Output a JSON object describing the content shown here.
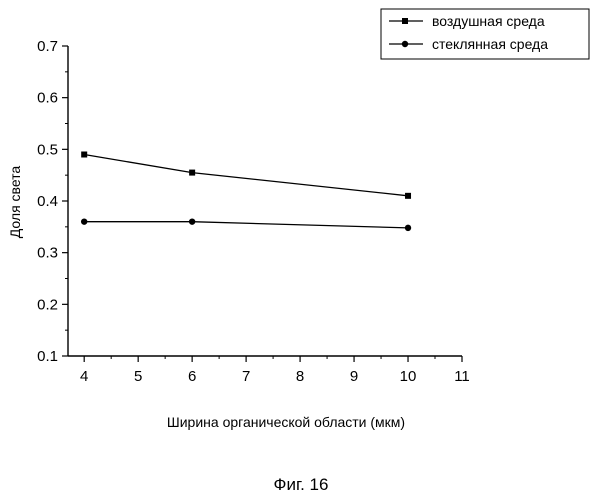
{
  "caption": "Фиг. 16",
  "chart_data": {
    "type": "line",
    "title": "",
    "xlabel": "Ширина органической области (мкм)",
    "ylabel": "Доля света",
    "xlim": [
      3.7,
      11
    ],
    "ylim": [
      0.1,
      0.7
    ],
    "xticks": [
      4,
      5,
      6,
      7,
      8,
      9,
      10,
      11
    ],
    "xtick_labels": [
      "4",
      "5",
      "6",
      "7",
      "8",
      "9",
      "10",
      "11"
    ],
    "yticks": [
      0.1,
      0.2,
      0.3,
      0.4,
      0.5,
      0.6,
      0.7
    ],
    "ytick_labels": [
      "0.1",
      "0.2",
      "0.3",
      "0.4",
      "0.5",
      "0.6",
      "0.7"
    ],
    "grid": false,
    "legend_position": "top-right",
    "x": [
      4,
      6,
      10
    ],
    "series": [
      {
        "name": "воздушная среда",
        "marker": "square",
        "color": "#000000",
        "values": [
          0.49,
          0.455,
          0.41
        ]
      },
      {
        "name": "стеклянная среда",
        "marker": "circle",
        "color": "#000000",
        "values": [
          0.36,
          0.36,
          0.348
        ]
      }
    ]
  }
}
